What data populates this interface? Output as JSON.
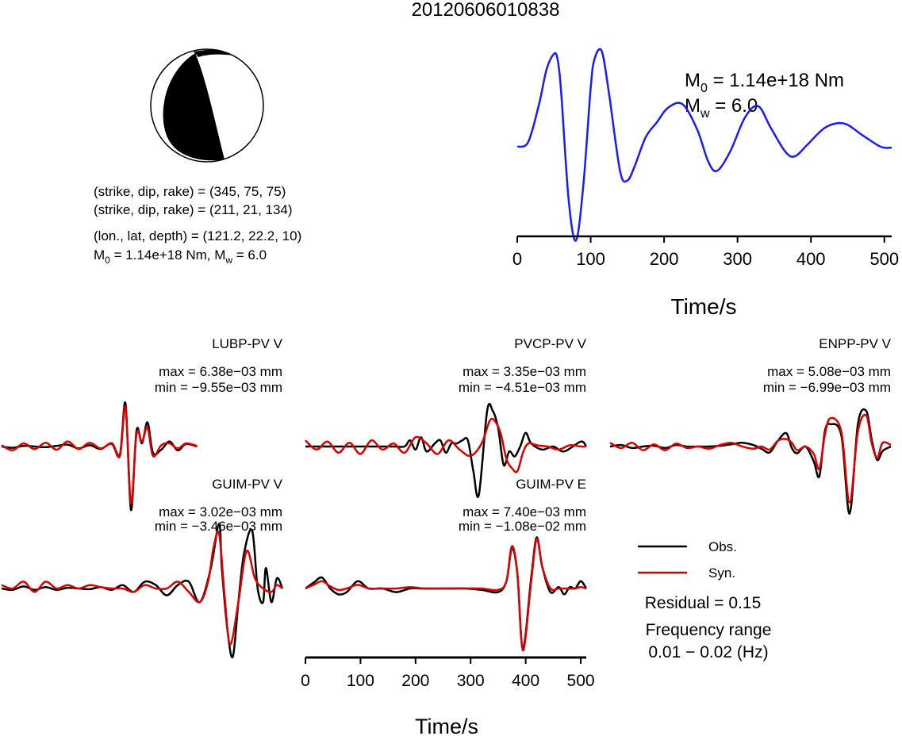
{
  "title": "20120606010838",
  "mechanism": {
    "nodal_plane_1": "(strike, dip, rake) = (345, 75, 75)",
    "nodal_plane_2": "(strike, dip, rake) = (211, 21, 134)",
    "location": "(lon., lat, depth) = (121.2, 22.2, 10)",
    "m0_prefix": "M",
    "m0_sub": "0",
    "m0_value": " = 1.14e+18 Nm, M",
    "mw_sub": "w",
    "mw_value": " = 6.0"
  },
  "stf": {
    "m0_label": "M",
    "m0_sub": "0",
    "m0_text": " = 1.14e+18 Nm",
    "mw_label": "M",
    "mw_sub": "w",
    "mw_text": " = 6.0",
    "xlabel": "Time/s",
    "color": "#1a1aff"
  },
  "legend": {
    "obs": "Obs.",
    "syn": "Syn.",
    "obs_color": "#000000",
    "syn_color": "#dd0000",
    "residual": "Residual = 0.15",
    "freq_title": "Frequency range",
    "freq_value": "0.01 − 0.02 (Hz)"
  },
  "waveform_xlabel": "Time/s",
  "chart_data": [
    {
      "type": "line",
      "name": "source-time-function",
      "xlabel": "Time/s",
      "xlim": [
        0,
        510
      ],
      "xticks": [
        0,
        100,
        200,
        300,
        400,
        500
      ],
      "x": [
        0,
        15,
        30,
        40,
        50,
        55,
        60,
        70,
        80,
        90,
        100,
        105,
        115,
        125,
        140,
        150,
        160,
        175,
        190,
        205,
        225,
        245,
        260,
        272,
        290,
        310,
        328,
        345,
        365,
        378,
        395,
        420,
        445,
        470,
        495,
        510
      ],
      "values": [
        0,
        0.05,
        0.45,
        0.8,
        0.96,
        0.9,
        0.55,
        -0.55,
        -0.97,
        -0.4,
        0.6,
        0.9,
        0.99,
        0.55,
        -0.25,
        -0.35,
        -0.2,
        0.1,
        0.25,
        0.4,
        0.44,
        0.18,
        -0.15,
        -0.25,
        -0.05,
        0.3,
        0.42,
        0.2,
        -0.05,
        -0.1,
        0.02,
        0.2,
        0.24,
        0.12,
        0.0,
        -0.01
      ]
    },
    {
      "type": "line",
      "name": "LUBP-PV V",
      "station": "LUBP-PV V",
      "max": "max = 6.38e−03 mm",
      "min": "min = −9.55e−03 mm",
      "xlim": [
        0,
        510
      ],
      "series": [
        {
          "name": "Obs.",
          "x": [
            0,
            20,
            40,
            60,
            80,
            100,
            120,
            140,
            160,
            180,
            200,
            215,
            225,
            235,
            245,
            255,
            265,
            275,
            290,
            305,
            320,
            335,
            355
          ],
          "values": [
            0,
            -0.02,
            0.01,
            0,
            -0.01,
            0.01,
            0.03,
            -0.03,
            0.02,
            -0.04,
            0.05,
            -0.12,
            0.68,
            -1.0,
            0.25,
            0.05,
            0.38,
            -0.1,
            -0.05,
            0.08,
            -0.06,
            0.04,
            0
          ]
        },
        {
          "name": "Syn.",
          "x": [
            0,
            20,
            40,
            60,
            80,
            100,
            120,
            140,
            160,
            180,
            200,
            215,
            225,
            235,
            245,
            255,
            265,
            275,
            290,
            305,
            320,
            335,
            355
          ],
          "values": [
            0.02,
            -0.06,
            0.05,
            -0.04,
            0.06,
            -0.05,
            0.08,
            -0.04,
            0.06,
            -0.03,
            0.04,
            -0.15,
            0.62,
            -0.9,
            0.2,
            0.08,
            0.3,
            -0.15,
            0.02,
            0.05,
            -0.03,
            0.05,
            0.01
          ]
        }
      ]
    },
    {
      "type": "line",
      "name": "PVCP-PV V",
      "station": "PVCP-PV V",
      "max": "max = 3.35e−03 mm",
      "min": "min = −4.51e−03 mm",
      "xlim": [
        0,
        510
      ],
      "series": [
        {
          "name": "Obs.",
          "x": [
            0,
            40,
            80,
            120,
            160,
            180,
            190,
            200,
            210,
            220,
            235,
            245,
            255,
            265,
            275,
            285,
            295,
            305,
            315,
            330,
            340,
            350,
            360,
            370,
            380,
            390,
            400,
            410,
            430,
            450,
            470,
            500,
            510
          ],
          "values": [
            0,
            0,
            0,
            0,
            0,
            0,
            0.1,
            -0.05,
            0.15,
            -0.08,
            0.05,
            0.1,
            -0.1,
            0.05,
            0.05,
            0.1,
            0.1,
            -0.4,
            -0.78,
            0.58,
            0.58,
            0.3,
            -0.3,
            -0.08,
            -0.16,
            0.0,
            0.22,
            0.05,
            -0.05,
            0.0,
            -0.08,
            0.08,
            0.0
          ]
        },
        {
          "name": "Syn.",
          "x": [
            0,
            20,
            40,
            60,
            80,
            100,
            120,
            140,
            160,
            180,
            200,
            220,
            240,
            260,
            280,
            300,
            320,
            335,
            345,
            355,
            365,
            375,
            385,
            395,
            405,
            420,
            440,
            460,
            480,
            500,
            510
          ],
          "values": [
            0.1,
            -0.05,
            0.08,
            -0.1,
            0.06,
            -0.12,
            0.1,
            -0.05,
            0.05,
            -0.1,
            0.15,
            0.05,
            -0.12,
            0.1,
            -0.05,
            -0.15,
            0.05,
            0.42,
            0.4,
            0.2,
            -0.2,
            -0.35,
            -0.4,
            -0.1,
            0.05,
            0.02,
            0.0,
            -0.05,
            0.02,
            0.0,
            0.0
          ]
        }
      ]
    },
    {
      "type": "line",
      "name": "ENPP-PV V",
      "station": "ENPP-PV V",
      "max": "max = 5.08e−03 mm",
      "min": "min = −6.99e−03 mm",
      "xlim": [
        0,
        510
      ],
      "series": [
        {
          "name": "Obs.",
          "x": [
            0,
            20,
            40,
            60,
            80,
            100,
            120,
            140,
            160,
            180,
            200,
            220,
            240,
            260,
            275,
            290,
            305,
            320,
            330,
            340,
            355,
            370,
            380,
            390,
            400,
            420,
            435,
            450,
            465,
            475,
            485,
            495,
            510
          ],
          "values": [
            0,
            0.02,
            -0.02,
            0,
            0.01,
            -0.02,
            0.02,
            0,
            0,
            0,
            0.01,
            0.03,
            0.05,
            0.02,
            -0.03,
            -0.08,
            0.08,
            0.18,
            -0.02,
            -0.09,
            0.0,
            -0.2,
            -0.4,
            0.2,
            0.3,
            0.15,
            -0.9,
            0.3,
            0.48,
            0.1,
            -0.18,
            -0.06,
            0
          ]
        },
        {
          "name": "Syn.",
          "x": [
            0,
            20,
            40,
            60,
            80,
            100,
            120,
            140,
            160,
            180,
            200,
            220,
            240,
            260,
            275,
            290,
            305,
            320,
            330,
            340,
            355,
            370,
            380,
            390,
            400,
            420,
            435,
            450,
            465,
            475,
            485,
            495,
            510
          ],
          "values": [
            0.05,
            -0.02,
            0.05,
            -0.05,
            0.03,
            -0.05,
            0.04,
            -0.02,
            0.0,
            -0.03,
            0.02,
            0.05,
            0.0,
            -0.03,
            0.0,
            -0.04,
            0.08,
            0.1,
            0.05,
            -0.05,
            0.0,
            -0.1,
            -0.3,
            0.15,
            0.38,
            0.2,
            -0.75,
            0.2,
            0.42,
            0.05,
            -0.15,
            0.05,
            0.02
          ]
        }
      ]
    },
    {
      "type": "line",
      "name": "GUIM-PV V",
      "station": "GUIM-PV V",
      "max": "max = 3.02e−03 mm",
      "min": "min = −3.46e−03 mm",
      "xlim": [
        0,
        510
      ],
      "series": [
        {
          "name": "Obs.",
          "x": [
            0,
            20,
            40,
            60,
            80,
            100,
            120,
            140,
            160,
            180,
            200,
            220,
            240,
            260,
            280,
            300,
            320,
            340,
            360,
            380,
            395,
            400,
            410,
            420,
            430,
            440,
            455,
            465,
            475,
            480,
            490,
            500,
            510
          ],
          "values": [
            0,
            -0.02,
            0.03,
            -0.02,
            0.02,
            -0.02,
            0.01,
            0.0,
            -0.01,
            0.02,
            -0.02,
            0.05,
            -0.05,
            0.1,
            0.05,
            -0.1,
            0.05,
            0.1,
            -0.2,
            0.3,
            0.95,
            0.3,
            -0.6,
            -1.0,
            -0.2,
            0.5,
            0.85,
            0.0,
            -0.2,
            0.3,
            -0.2,
            0.15,
            0.0
          ]
        },
        {
          "name": "Syn.",
          "x": [
            0,
            20,
            40,
            60,
            80,
            100,
            120,
            140,
            160,
            180,
            200,
            220,
            240,
            260,
            280,
            300,
            320,
            340,
            360,
            375,
            385,
            395,
            405,
            415,
            430,
            445,
            460,
            475,
            490,
            500,
            510
          ],
          "values": [
            0.05,
            0.0,
            0.1,
            -0.05,
            0.1,
            0.0,
            0.05,
            0.0,
            0.05,
            0.02,
            0.0,
            0.0,
            -0.05,
            0.05,
            0.0,
            0.0,
            0.1,
            -0.05,
            -0.2,
            0.1,
            0.6,
            0.8,
            -0.1,
            -0.82,
            -0.2,
            0.55,
            0.15,
            0.0,
            -0.05,
            0.05,
            0.0
          ]
        }
      ]
    },
    {
      "type": "line",
      "name": "GUIM-PV E",
      "station": "GUIM-PV E",
      "max": "max = 7.40e−03 mm",
      "min": "min = −1.08e−02 mm",
      "xlabel": "Time/s",
      "xlim": [
        0,
        510
      ],
      "xticks": [
        0,
        100,
        200,
        300,
        400,
        500
      ],
      "series": [
        {
          "name": "Obs.",
          "x": [
            0,
            15,
            30,
            45,
            60,
            75,
            95,
            115,
            140,
            165,
            190,
            215,
            240,
            265,
            290,
            320,
            350,
            365,
            375,
            385,
            395,
            410,
            420,
            430,
            445,
            460,
            470,
            480,
            490,
            500,
            510
          ],
          "values": [
            0,
            0.08,
            0.15,
            0.0,
            -0.08,
            -0.05,
            0.1,
            0.0,
            0.0,
            -0.05,
            0.0,
            0.0,
            0.0,
            0.0,
            0.0,
            -0.02,
            -0.05,
            0.1,
            0.55,
            0.2,
            -0.82,
            0.15,
            0.7,
            0.3,
            -0.05,
            0.02,
            -0.08,
            0.02,
            0.0,
            0.1,
            0.0
          ]
        },
        {
          "name": "Syn.",
          "x": [
            0,
            15,
            30,
            45,
            60,
            75,
            95,
            115,
            140,
            165,
            190,
            215,
            240,
            265,
            290,
            320,
            350,
            365,
            375,
            385,
            395,
            410,
            420,
            430,
            445,
            460,
            470,
            480,
            490,
            500,
            510
          ],
          "values": [
            0.0,
            0.05,
            0.1,
            0.03,
            -0.02,
            0.0,
            0.05,
            0.0,
            0.0,
            0.0,
            0.02,
            0.0,
            0.0,
            0.0,
            0.0,
            0.0,
            -0.02,
            0.1,
            0.58,
            0.2,
            -0.85,
            0.1,
            0.68,
            0.3,
            0.0,
            0.0,
            0.0,
            0.0,
            0.0,
            0.02,
            0.0
          ]
        }
      ]
    }
  ]
}
